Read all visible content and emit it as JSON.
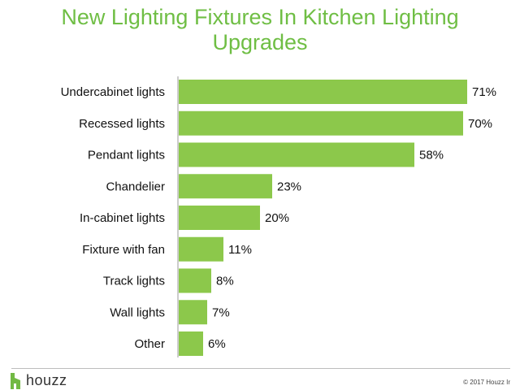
{
  "title": "New Lighting Fixtures In Kitchen Lighting Upgrades",
  "footer": {
    "brand": "houzz",
    "copyright": "© 2017 Houzz Ir"
  },
  "colors": {
    "bar": "#8cc84b",
    "title": "#6fbe44",
    "logo": "#72b944"
  },
  "chart_data": {
    "type": "bar",
    "orientation": "horizontal",
    "title": "New Lighting Fixtures In Kitchen Lighting Upgrades",
    "categories": [
      "Undercabinet lights",
      "Recessed lights",
      "Pendant lights",
      "Chandelier",
      "In-cabinet lights",
      "Fixture with fan",
      "Track lights",
      "Wall lights",
      "Other"
    ],
    "values": [
      71,
      70,
      58,
      23,
      20,
      11,
      8,
      7,
      6
    ],
    "value_labels": [
      "71%",
      "70%",
      "58%",
      "23%",
      "20%",
      "11%",
      "8%",
      "7%",
      "6%"
    ],
    "unit": "%",
    "xlim": [
      0,
      100
    ],
    "grid": false,
    "legend": "none"
  }
}
